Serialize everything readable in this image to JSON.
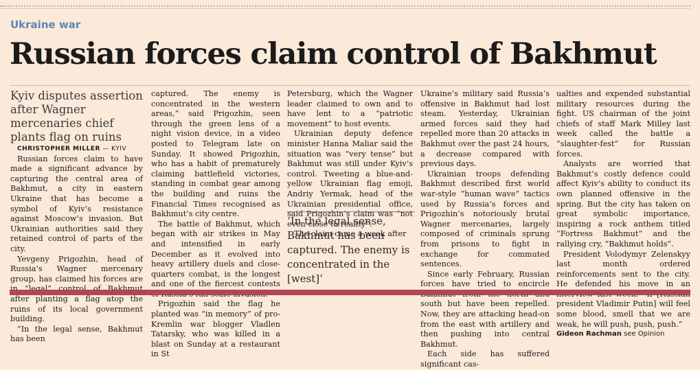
{
  "section": "Ukraine war",
  "headline": "Russian forces claim control of Bakhmut",
  "standfirst": "Kyiv disputes assertion after Wagner mercenaries chief plants flag on ruins",
  "byline": {
    "author": "CHRISTOPHER MILLER",
    "location": "— KYIV"
  },
  "columns": [
    [
      "Russian forces claim to have made a significant advance by capturing the central area of Bakhmut, a city in eastern Ukraine that has become a symbol of Kyiv’s resistance against Moscow’s invasion. But Ukrainian authorities said they retained control of parts of the city.",
      "Yevgeny Prigozhin, head of Russia’s Wagner mercenary group, has claimed his forces are in “legal” control of Bakhmut after planting a flag atop the ruins of its local government building.",
      "“In the legal sense, Bakhmut has been"
    ],
    [
      "captured. The enemy is concentrated in the western areas,” said Prigozhin, seen through the green lens of a night vision device, in a video posted to Telegram late on Sunday. It showed Prigozhin, who has a habit of prematurely claiming battlefield victories, standing in combat gear among the building and ruins the Financial Times recognised as Bakhmut’s city centre.",
      "The battle of Bakhmut, which began with air strikes in May and intensified in early December as it evolved into heavy artillery duels and close-quarters combat, is the longest and one of the fiercest contests of Russia’s full-scale invasion.",
      "Prigozhin said the flag he planted was “in memory” of pro-Kremlin war blogger Vladlen Tatarsky, who was killed in a blast on Sunday at a restaurant in St"
    ],
    [
      "Petersburg, which the Wagner leader claimed to own and to have lent to a “patriotic movement” to host events.",
      "Ukrainian deputy defence minister Hanna Maliar said the situation was “very tense” but Bakhmut was still under Kyiv’s control. Tweeting a blue-and-yellow Ukrainian flag emoji, Andriy Yermak, head of the Ukrainian presidential office, said Prigozhin’s claim was “not even close to reality”.",
      "The claim came a week after"
    ],
    [
      "Ukraine’s military said Russia’s offensive in Bakhmut had lost steam. Yesterday, Ukrainian armed forces said they had repelled more than 20 attacks in Bakhmut over the past 24 hours, a decrease compared with previous days.",
      "Ukrainian troops defending Bakhmut described first world war-style “human wave” tactics used by Russia’s forces and Prigozhin’s notoriously brutal Wagner mercenaries, largely composed of criminals sprung from prisons to fight in exchange for commuted sentences.",
      "Since early February, Russian forces have tried to encircle Bakhmut from the north and south but have been repelled. Now, they are attacking head-on from the east with artillery and then pushing into central Bakhmut.",
      "Each side has suffered significant cas-"
    ],
    [
      "ualties and expended substantial military resources during the fight. US chairman of the joint chiefs of staff Mark Milley last week called the battle a “slaughter-fest” for Russian forces.",
      "Analysts are worried that Bakhmut’s costly defence could affect Kyiv’s ability to conduct its own planned offensive in the spring. But the city has taken on great symbolic importance, inspiring a rock anthem titled “Fortress Bakhmut” and the rallying cry, “Bakhmut holds”.",
      "President Volodymyr Zelenskyy last month ordered reinforcements sent to the city. He defended his move in an interview last week: “If [Russian president Vladimir Putin] will feel some blood, smell that we are weak, he will push, push, push.”"
    ]
  ],
  "pullquote": "‘In the legal sense, Bakhmut has been captured. The enemy is concentrated in the [west]’",
  "signoff": {
    "name": "Gideon Rachman",
    "text": "see Opinion"
  },
  "colors": {
    "section": "#5c87b6",
    "background": "#fbe9da",
    "bottom_bar": "#b04753"
  }
}
